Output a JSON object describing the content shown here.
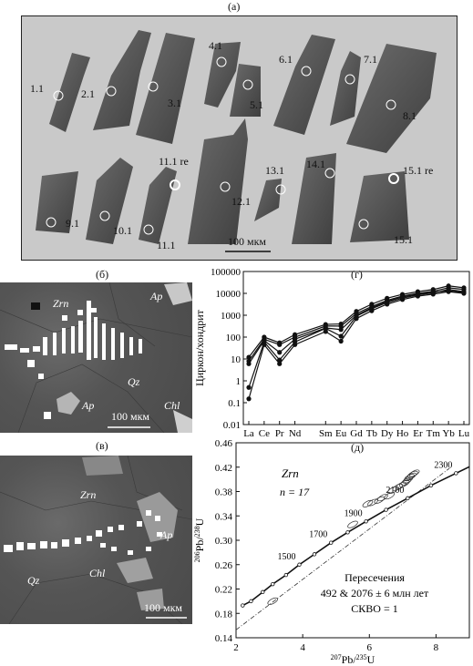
{
  "figure": {
    "panel_a": {
      "label": "(a)",
      "grain_labels": [
        "1.1",
        "2.1",
        "3.1",
        "4.1",
        "5.1",
        "6.1",
        "7.1",
        "8.1",
        "9.1",
        "10.1",
        "11.1",
        "11.1 re",
        "12.1",
        "13.1",
        "14.1",
        "15.1 re",
        "15.1"
      ],
      "scale": "100 мкм"
    },
    "panel_b": {
      "label": "(б)",
      "minerals": [
        "Zrn",
        "Ap",
        "Ap",
        "Qz",
        "Chl"
      ],
      "scale": "100 мкм"
    },
    "panel_v": {
      "label": "(в)",
      "minerals": [
        "Zrn",
        "Ap",
        "Chl",
        "Qz"
      ],
      "scale": "100 мкм"
    },
    "panel_g": {
      "label": "(г)",
      "ylabel": "Циркон/хондрит"
    },
    "panel_d": {
      "label": "(д)",
      "mineral": "Zrn",
      "n_label": "n = 17",
      "annotation": [
        "Пересечения",
        "492 & 2076 ± 6 млн лет",
        "СКВО = 1"
      ],
      "ylabel": "206Pb/238U",
      "xlabel": "207Pb/235U"
    }
  },
  "chart_data": [
    {
      "type": "line",
      "panel": "(г)",
      "title": "",
      "ylabel": "Циркон/хондрит",
      "xlabel": "",
      "yscale": "log",
      "ylim": [
        0.01,
        100000
      ],
      "yticks": [
        "100000",
        "10000",
        "1000",
        "100",
        "10",
        "1",
        "0.1",
        "0.01"
      ],
      "categories": [
        "La",
        "Ce",
        "Pr",
        "Nd",
        "Sm",
        "Eu",
        "Gd",
        "Tb",
        "Dy",
        "Ho",
        "Er",
        "Tm",
        "Yb",
        "Lu"
      ],
      "x_positions": [
        0,
        1,
        2,
        3,
        5,
        6,
        7,
        8,
        9,
        10,
        11,
        12,
        13,
        14
      ],
      "series": [
        {
          "values": [
            12,
            100,
            55,
            130,
            380,
            400,
            1500,
            3200,
            6000,
            9000,
            12000,
            15000,
            22000,
            18000
          ]
        },
        {
          "values": [
            8,
            80,
            45,
            100,
            320,
            320,
            1200,
            2500,
            4800,
            7500,
            10000,
            12500,
            18000,
            15000
          ]
        },
        {
          "values": [
            0.5,
            60,
            9,
            60,
            250,
            110,
            900,
            2000,
            3800,
            6000,
            8500,
            10500,
            15000,
            12000
          ]
        },
        {
          "values": [
            0.15,
            45,
            6,
            45,
            180,
            65,
            700,
            1600,
            3200,
            5200,
            7500,
            9200,
            12000,
            10000
          ]
        },
        {
          "values": [
            6,
            70,
            20,
            80,
            260,
            220,
            1000,
            2200,
            4300,
            6800,
            9200,
            11500,
            13000,
            11000
          ]
        }
      ]
    },
    {
      "type": "scatter",
      "panel": "(д)",
      "title": "",
      "xlabel": "207Pb/235U",
      "ylabel": "206Pb/238U",
      "xlim": [
        2,
        9
      ],
      "ylim": [
        0.14,
        0.46
      ],
      "xticks": [
        "2",
        "4",
        "6",
        "8"
      ],
      "yticks": [
        "0.14",
        "0.18",
        "0.22",
        "0.26",
        "0.30",
        "0.34",
        "0.38",
        "0.42",
        "0.46"
      ],
      "concordia_ages": [
        "1500",
        "1700",
        "1900",
        "2100",
        "2300"
      ],
      "concordia_points": [
        {
          "x": 2.2,
          "y": 0.193
        },
        {
          "x": 2.45,
          "y": 0.2
        },
        {
          "x": 2.8,
          "y": 0.215
        },
        {
          "x": 3.1,
          "y": 0.228
        },
        {
          "x": 3.5,
          "y": 0.243
        },
        {
          "x": 3.9,
          "y": 0.26
        },
        {
          "x": 4.35,
          "y": 0.277
        },
        {
          "x": 4.85,
          "y": 0.296
        },
        {
          "x": 5.35,
          "y": 0.313
        },
        {
          "x": 5.9,
          "y": 0.331
        },
        {
          "x": 6.5,
          "y": 0.35
        },
        {
          "x": 7.15,
          "y": 0.369
        },
        {
          "x": 7.85,
          "y": 0.39
        },
        {
          "x": 8.6,
          "y": 0.41
        }
      ],
      "discordia": [
        {
          "x": 2.0,
          "y": 0.153
        },
        {
          "x": 8.4,
          "y": 0.418
        }
      ],
      "ellipses": [
        {
          "x": 3.1,
          "y": 0.2
        },
        {
          "x": 5.5,
          "y": 0.326
        },
        {
          "x": 5.95,
          "y": 0.36
        },
        {
          "x": 6.1,
          "y": 0.362
        },
        {
          "x": 6.3,
          "y": 0.366
        },
        {
          "x": 6.4,
          "y": 0.37
        },
        {
          "x": 6.6,
          "y": 0.373
        },
        {
          "x": 6.7,
          "y": 0.382
        },
        {
          "x": 6.85,
          "y": 0.387
        },
        {
          "x": 6.95,
          "y": 0.39
        },
        {
          "x": 7.05,
          "y": 0.393
        },
        {
          "x": 7.1,
          "y": 0.396
        },
        {
          "x": 7.15,
          "y": 0.399
        },
        {
          "x": 7.2,
          "y": 0.403
        },
        {
          "x": 7.25,
          "y": 0.405
        },
        {
          "x": 7.3,
          "y": 0.408
        },
        {
          "x": 7.35,
          "y": 0.41
        }
      ]
    }
  ]
}
